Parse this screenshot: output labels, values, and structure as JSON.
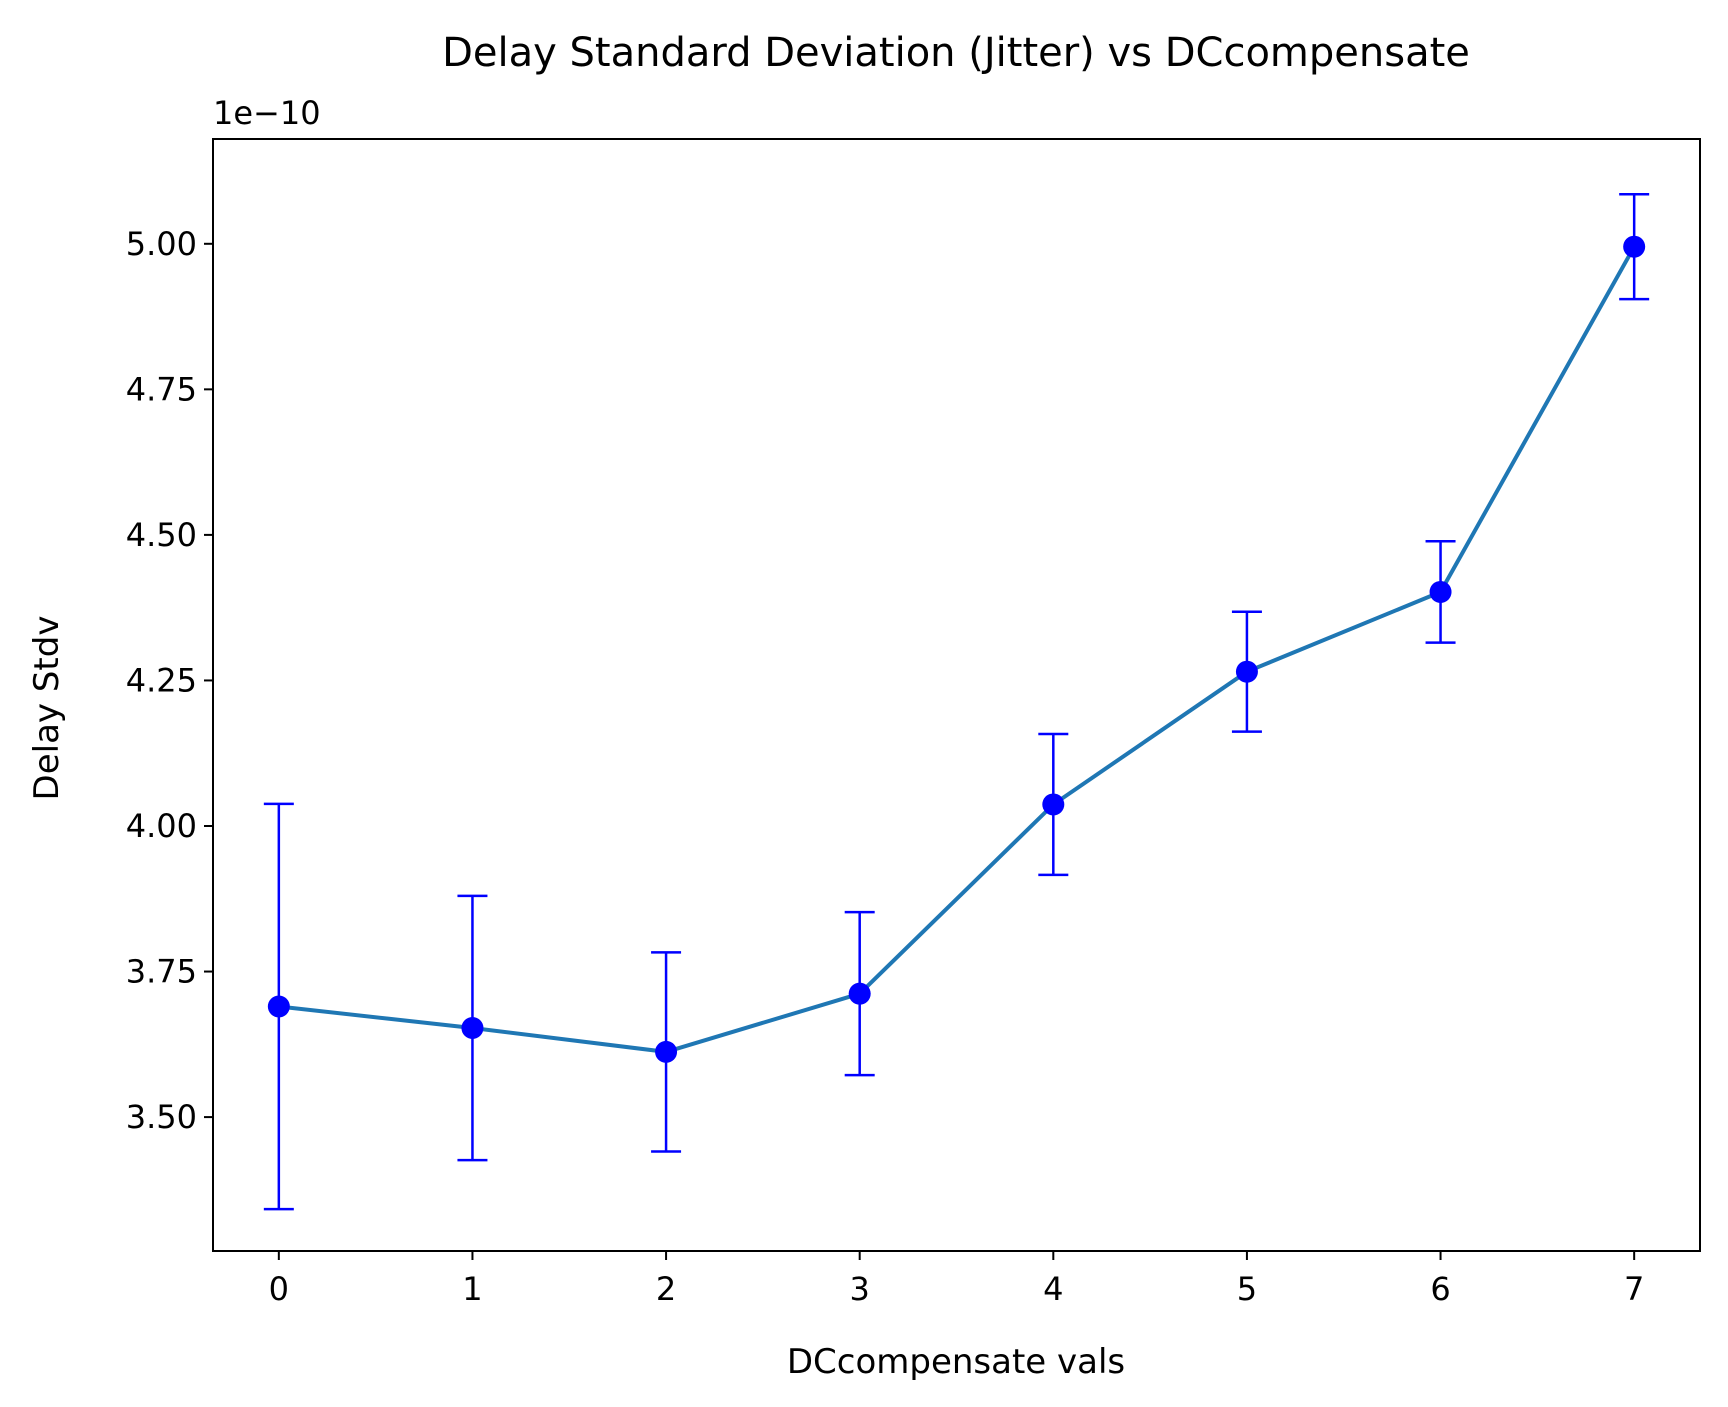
{
  "chart_data": {
    "type": "line",
    "title": "Delay Standard Deviation (Jitter) vs DCcompensate",
    "xlabel": "DCcompensate vals",
    "ylabel": "Delay Stdv",
    "y_offset_label": "1e−10",
    "y_scale": 1e-10,
    "x": [
      0,
      1,
      2,
      3,
      4,
      5,
      6,
      7
    ],
    "series": [
      {
        "values": [
          3.69,
          3.653,
          3.612,
          3.712,
          4.037,
          4.265,
          4.402,
          4.995
        ],
        "error": [
          0.348,
          0.227,
          0.171,
          0.14,
          0.121,
          0.103,
          0.087,
          0.09
        ],
        "line_color": "#1f77b4",
        "marker_color": "#0000ff"
      }
    ],
    "xlim": [
      -0.34,
      7.34
    ],
    "ylim": [
      3.27,
      5.18
    ],
    "x_ticks": [
      0,
      1,
      2,
      3,
      4,
      5,
      6,
      7
    ],
    "x_tick_labels": [
      "0",
      "1",
      "2",
      "3",
      "4",
      "5",
      "6",
      "7"
    ],
    "y_ticks": [
      3.5,
      3.75,
      4.0,
      4.25,
      4.5,
      4.75,
      5.0
    ],
    "y_tick_labels": [
      "3.50",
      "3.75",
      "4.00",
      "4.25",
      "4.50",
      "4.75",
      "5.00"
    ],
    "grid": false,
    "legend": "none"
  }
}
